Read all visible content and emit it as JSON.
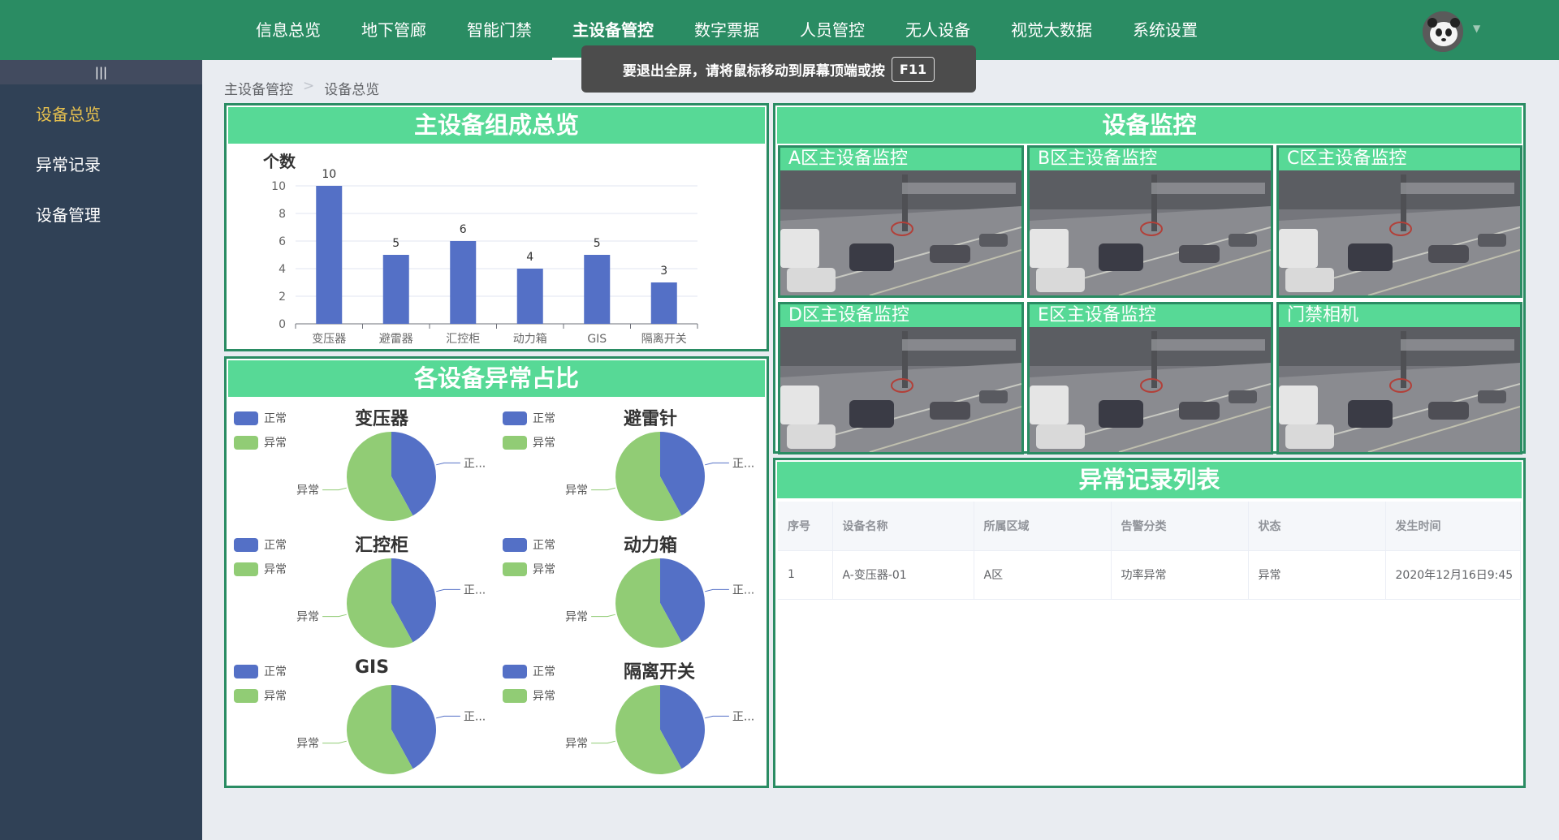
{
  "topnav": [
    "信息总览",
    "地下管廊",
    "智能门禁",
    "主设备管控",
    "数字票据",
    "人员管控",
    "无人设备",
    "视觉大数据",
    "系统设置"
  ],
  "toast": {
    "text": "要退出全屏，请将鼠标移动到屏幕顶端或按",
    "key": "F11"
  },
  "sidebar": {
    "collapse_icon": "|||",
    "items": [
      "设备总览",
      "异常记录",
      "设备管理"
    ]
  },
  "breadcrumb": [
    "主设备管控",
    "设备总览"
  ],
  "panels": {
    "composition": "主设备组成总览",
    "abnormal_ratio": "各设备异常占比",
    "monitor": "设备监控",
    "records": "异常记录列表"
  },
  "chart_data": [
    {
      "type": "bar",
      "title": "",
      "ylabel": "个数",
      "categories": [
        "变压器",
        "避雷器",
        "汇控柜",
        "动力箱",
        "GIS",
        "隔离开关"
      ],
      "values": [
        10,
        5,
        6,
        4,
        5,
        3
      ],
      "ylim": [
        0,
        10
      ],
      "yticks": [
        0,
        2,
        4,
        6,
        8,
        10
      ],
      "color": "#5470c6",
      "grid": true
    },
    {
      "type": "pie",
      "title": "变压器",
      "labels": [
        "正常",
        "异常"
      ],
      "values": [
        42,
        58
      ],
      "colors": [
        "#5470c6",
        "#91cc75"
      ],
      "legend": "top-left"
    },
    {
      "type": "pie",
      "title": "避雷针",
      "labels": [
        "正常",
        "异常"
      ],
      "values": [
        42,
        58
      ],
      "colors": [
        "#5470c6",
        "#91cc75"
      ],
      "legend": "top-left"
    },
    {
      "type": "pie",
      "title": "汇控柜",
      "labels": [
        "正常",
        "异常"
      ],
      "values": [
        42,
        58
      ],
      "colors": [
        "#5470c6",
        "#91cc75"
      ],
      "legend": "top-left"
    },
    {
      "type": "pie",
      "title": "动力箱",
      "labels": [
        "正常",
        "异常"
      ],
      "values": [
        42,
        58
      ],
      "colors": [
        "#5470c6",
        "#91cc75"
      ],
      "legend": "top-left"
    },
    {
      "type": "pie",
      "title": "GIS",
      "labels": [
        "正常",
        "异常"
      ],
      "values": [
        42,
        58
      ],
      "colors": [
        "#5470c6",
        "#91cc75"
      ],
      "legend": "top-left"
    },
    {
      "type": "pie",
      "title": "隔离开关",
      "labels": [
        "正常",
        "异常"
      ],
      "values": [
        42,
        58
      ],
      "colors": [
        "#5470c6",
        "#91cc75"
      ],
      "legend": "top-left"
    }
  ],
  "pie_short_label": "正...",
  "cameras": [
    "A区主设备监控",
    "B区主设备监控",
    "C区主设备监控",
    "D区主设备监控",
    "E区主设备监控",
    "门禁相机"
  ],
  "records": {
    "columns": [
      "序号",
      "设备名称",
      "所属区域",
      "告警分类",
      "状态",
      "发生时间"
    ],
    "rows": [
      [
        "1",
        "A-变压器-01",
        "A区",
        "功率异常",
        "异常",
        "2020年12月16日9:45"
      ]
    ]
  }
}
